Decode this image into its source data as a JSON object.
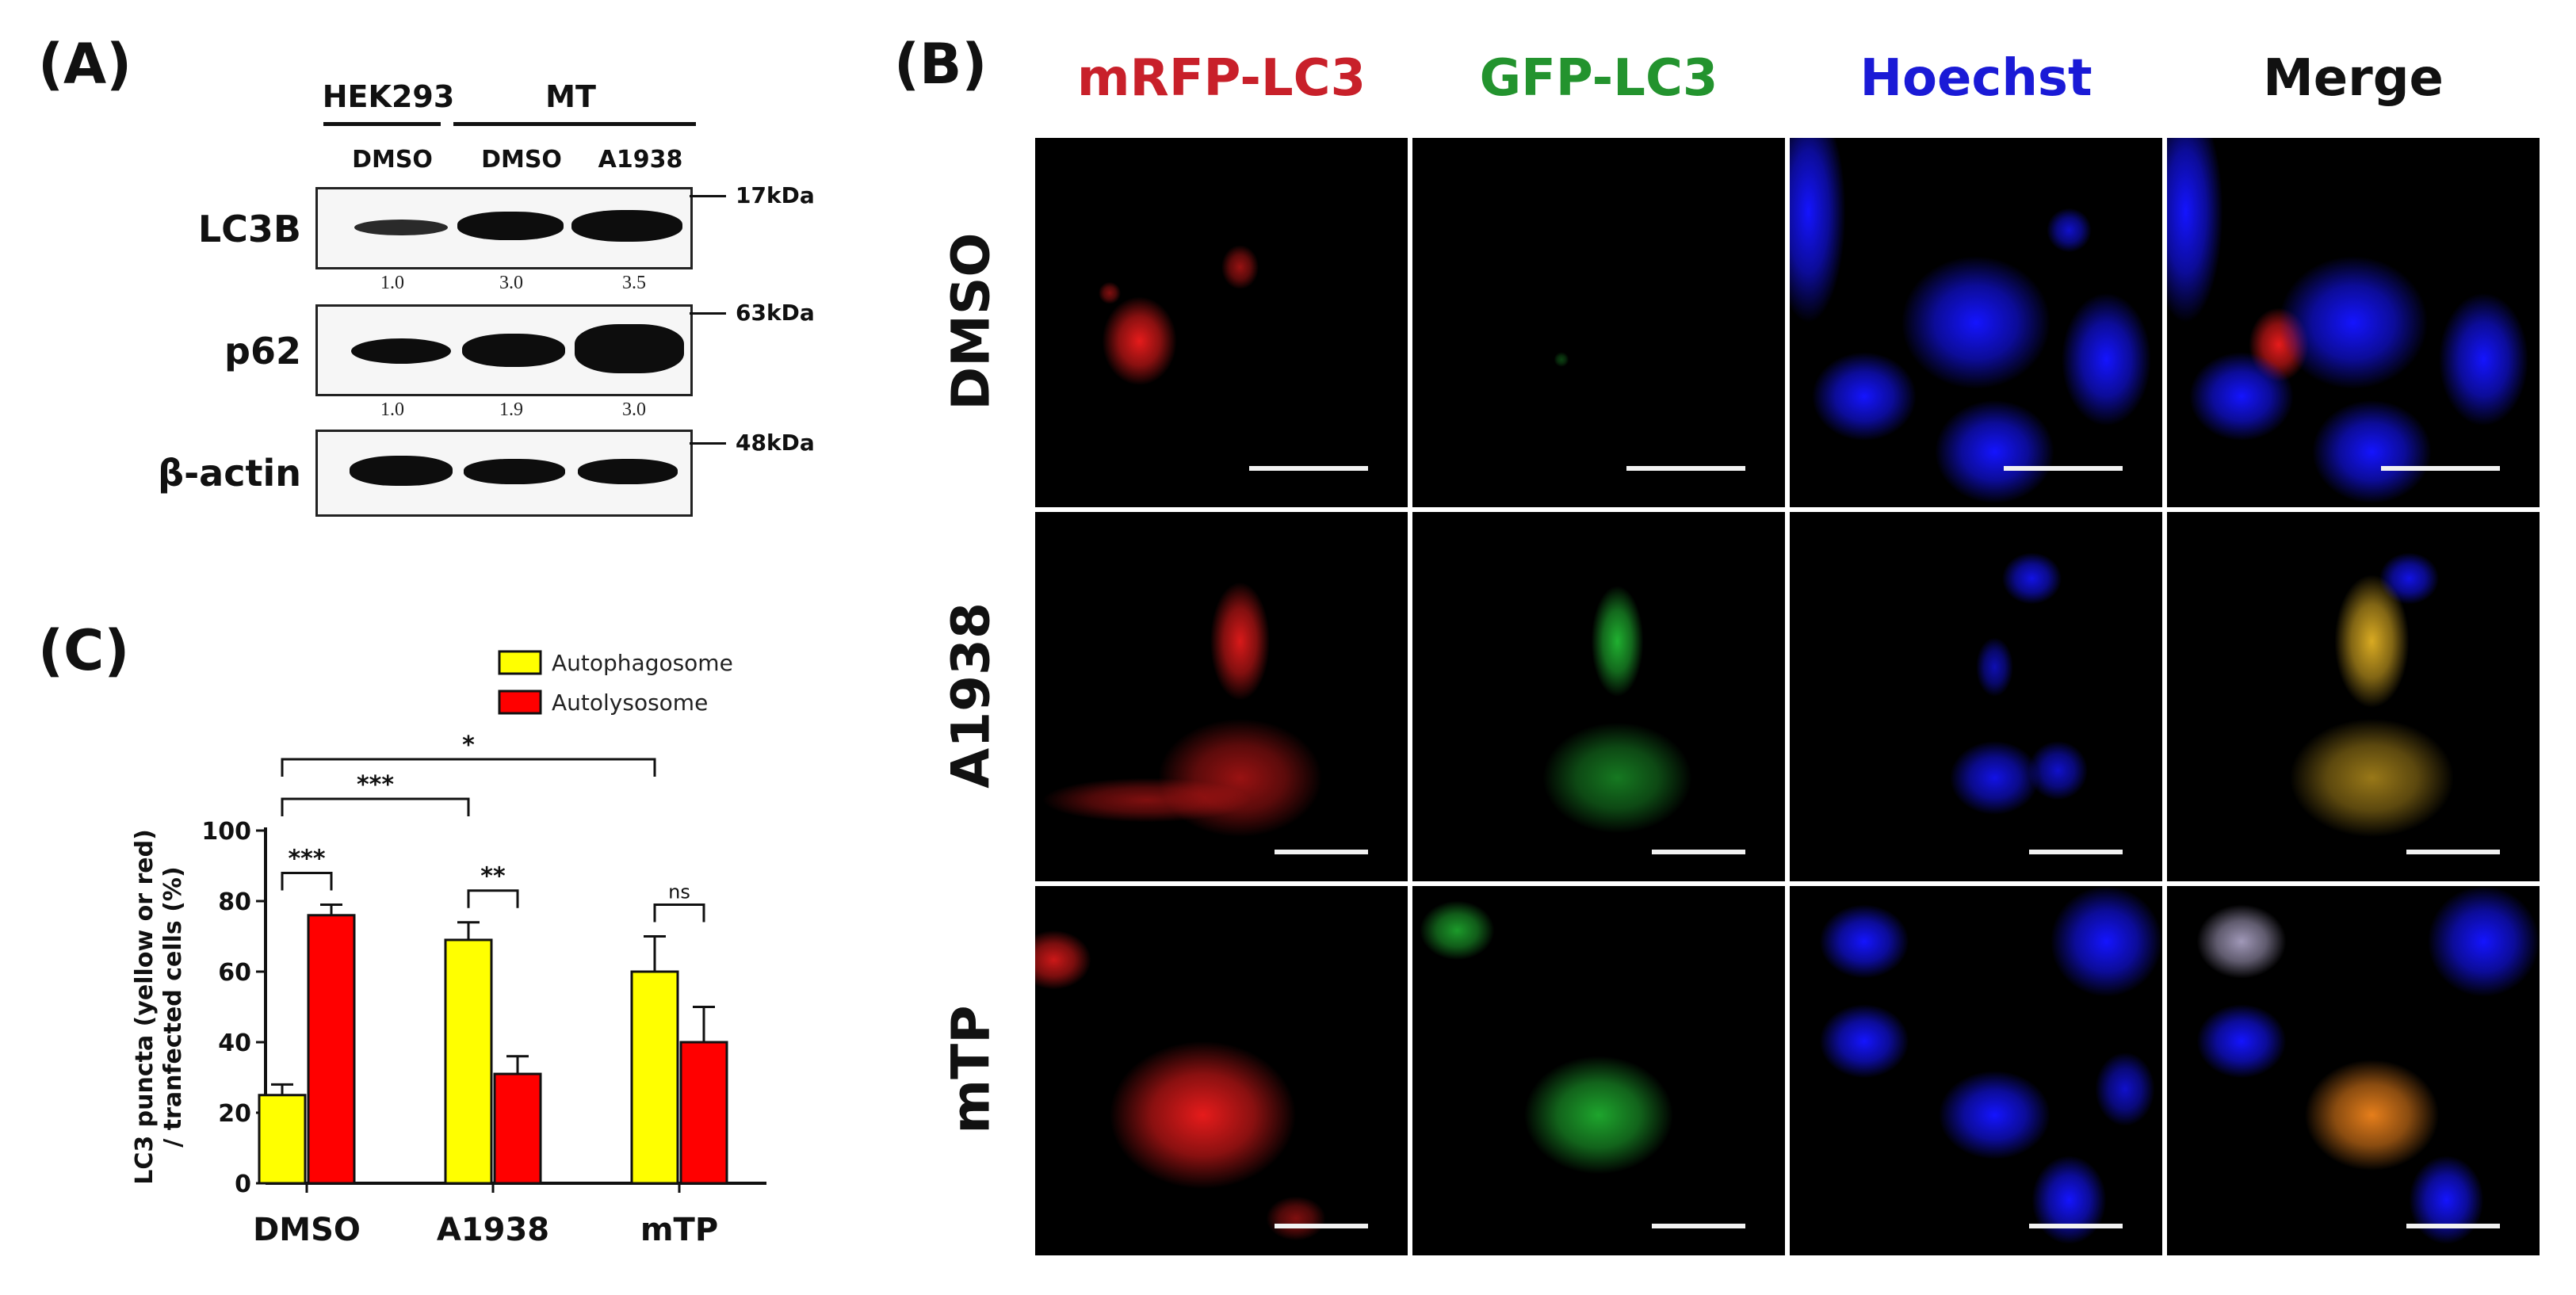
{
  "panel_labels": {
    "a": "(A)",
    "b": "(B)",
    "c": "(C)"
  },
  "western": {
    "groups": [
      "HEK293",
      "MT"
    ],
    "lanes": [
      "DMSO",
      "DMSO",
      "A1938"
    ],
    "blots": [
      {
        "protein": "LC3B",
        "marker": "17kDa",
        "quant": [
          "1.0",
          "3.0",
          "3.5"
        ]
      },
      {
        "protein": "p62",
        "marker": "63kDa",
        "quant": [
          "1.0",
          "1.9",
          "3.0"
        ]
      },
      {
        "protein": "β-actin",
        "marker": "48kDa",
        "quant": []
      }
    ]
  },
  "microscopy": {
    "channels": [
      {
        "label": "mRFP-LC3",
        "color": "#c8202a"
      },
      {
        "label": "GFP-LC3",
        "color": "#23932e"
      },
      {
        "label": "Hoechst",
        "color": "#1a1ad6"
      },
      {
        "label": "Merge",
        "color": "#111111"
      }
    ],
    "rows": [
      "DMSO",
      "A1938",
      "mTP"
    ]
  },
  "chart_data": {
    "type": "bar",
    "categories": [
      "DMSO",
      "A1938",
      "mTP"
    ],
    "series": [
      {
        "name": "Autophagosome",
        "color": "#ffff00",
        "values": [
          25,
          69,
          60
        ],
        "errors": [
          3,
          5,
          10
        ]
      },
      {
        "name": "Autolysosome",
        "color": "#ff0000",
        "values": [
          76,
          31,
          40
        ],
        "errors": [
          3,
          5,
          10
        ]
      }
    ],
    "ylabel_line1": "LC3 puncta (yellow or red)",
    "ylabel_line2": "/ tranfected cells (%)",
    "ylim": [
      0,
      100
    ],
    "yticks": [
      "0",
      "20",
      "40",
      "60",
      "80",
      "100"
    ],
    "legend_position": "top-right",
    "significance": [
      {
        "label": "***",
        "from": "DMSO-Autophagosome",
        "to": "DMSO-Autolysosome"
      },
      {
        "label": "**",
        "from": "A1938-Autophagosome",
        "to": "A1938-Autolysosome"
      },
      {
        "label": "ns",
        "from": "mTP-Autophagosome",
        "to": "mTP-Autolysosome"
      },
      {
        "label": "***",
        "from": "DMSO-Autophagosome",
        "to": "A1938-Autophagosome"
      },
      {
        "label": "*",
        "from": "DMSO-Autophagosome",
        "to": "mTP-Autophagosome"
      }
    ]
  }
}
